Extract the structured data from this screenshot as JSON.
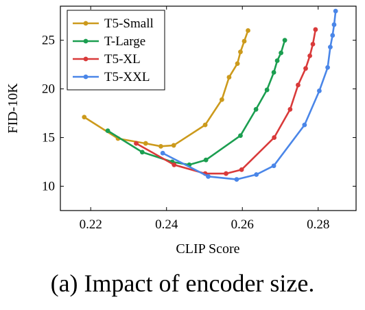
{
  "caption": "(a) Impact of encoder size.",
  "chart_data": {
    "type": "line",
    "xlabel": "CLIP Score",
    "ylabel": "FID-10K",
    "xlim": [
      0.212,
      0.29
    ],
    "ylim": [
      7.5,
      28.5
    ],
    "xticks": [
      0.22,
      0.24,
      0.26,
      0.28
    ],
    "xtick_labels": [
      "0.22",
      "0.24",
      "0.26",
      "0.28"
    ],
    "yticks": [
      10,
      15,
      20,
      25
    ],
    "ytick_labels": [
      "10",
      "15",
      "20",
      "25"
    ],
    "grid": false,
    "legend_position": "top-left",
    "series": [
      {
        "name": "T5-Small",
        "color": "#cc9a1c",
        "x": [
          0.2183,
          0.2272,
          0.2345,
          0.2385,
          0.2419,
          0.2502,
          0.2546,
          0.2565,
          0.2587,
          0.2595,
          0.2605,
          0.2615
        ],
        "y": [
          17.1,
          14.9,
          14.4,
          14.1,
          14.2,
          16.3,
          18.9,
          21.2,
          22.6,
          23.8,
          24.9,
          26.0
        ]
      },
      {
        "name": "T-Large",
        "color": "#1b9e50",
        "x": [
          0.2245,
          0.2336,
          0.2415,
          0.246,
          0.2504,
          0.2595,
          0.2636,
          0.2665,
          0.2683,
          0.2692,
          0.2702,
          0.2712
        ],
        "y": [
          15.7,
          13.5,
          12.5,
          12.2,
          12.7,
          15.2,
          17.9,
          19.9,
          21.7,
          22.9,
          23.7,
          25.0
        ]
      },
      {
        "name": "T5-XL",
        "color": "#d93a3a",
        "x": [
          0.232,
          0.242,
          0.2502,
          0.2557,
          0.2598,
          0.2684,
          0.2726,
          0.2747,
          0.2767,
          0.2778,
          0.2786,
          0.2793
        ],
        "y": [
          14.4,
          12.2,
          11.3,
          11.3,
          11.7,
          15.0,
          17.9,
          20.4,
          22.1,
          23.4,
          24.6,
          26.1
        ]
      },
      {
        "name": "T5-XXL",
        "color": "#4a86e8",
        "x": [
          0.239,
          0.251,
          0.2585,
          0.2637,
          0.2683,
          0.2764,
          0.2803,
          0.2825,
          0.2832,
          0.2838,
          0.2842,
          0.2846
        ],
        "y": [
          13.4,
          11.0,
          10.7,
          11.2,
          12.1,
          16.3,
          19.8,
          22.2,
          24.3,
          25.5,
          26.6,
          28.0
        ]
      }
    ]
  }
}
